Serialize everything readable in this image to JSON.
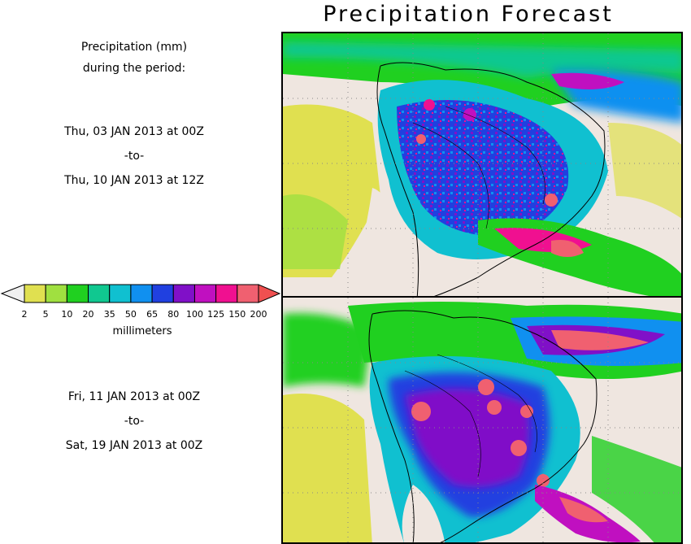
{
  "title": "Precipitation Forecast",
  "units_line1": "Precipitation (mm)",
  "units_line2": "during the period:",
  "periods": [
    {
      "start": "Thu, 03 JAN 2013 at 00Z",
      "sep": "-to-",
      "end": "Thu, 10 JAN 2013 at 12Z"
    },
    {
      "start": "Fri, 11 JAN 2013 at 00Z",
      "sep": "-to-",
      "end": "Sat, 19 JAN 2013 at 00Z"
    }
  ],
  "colorbar": {
    "unit": "millimeters",
    "ticks": [
      "2",
      "5",
      "10",
      "20",
      "35",
      "50",
      "65",
      "80",
      "100",
      "125",
      "150",
      "200"
    ],
    "colors": [
      "#f0f0f0",
      "#e0e050",
      "#a0e040",
      "#20d020",
      "#10c890",
      "#10c0d0",
      "#1090f0",
      "#2040e0",
      "#8010c8",
      "#c010c0",
      "#f01090",
      "#f06070",
      "#f05050"
    ]
  },
  "colors": {
    "land_dry": "#efe6e0",
    "coast": "#000000",
    "ocean_light": "#e8e070"
  }
}
